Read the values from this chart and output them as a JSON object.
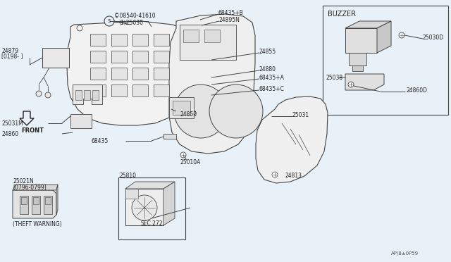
{
  "bg_color": "#e8f0f8",
  "line_color": "#444444",
  "text_color": "#222222",
  "fig_width": 6.4,
  "fig_height": 3.72,
  "diagram_number": "AP/8±0P59",
  "labels": {
    "08540_41610": "©08540-41610",
    "1_25030": "⟨1⟩25030",
    "24879": "24879",
    "0198": "[0198- ]",
    "25031M": "25031M",
    "24860": "24860",
    "68435": "68435",
    "24850": "24850",
    "68435B": "68435+B",
    "24895N": "24895N",
    "24855": "24855",
    "24880": "24880",
    "68435A": "68435+A",
    "68435C": "68435+C",
    "25031": "25031",
    "24813": "24813",
    "25021N": "25021N",
    "0796": "[0796-0799]",
    "theft": "(THEFT WARNING)",
    "25810": "25810",
    "sec272": "SEC.272",
    "25010A": "25010A",
    "buzzer": "BUZZER",
    "25030D": "25030D",
    "25038": "25038",
    "24860D": "24860D",
    "front": "FRONT"
  }
}
